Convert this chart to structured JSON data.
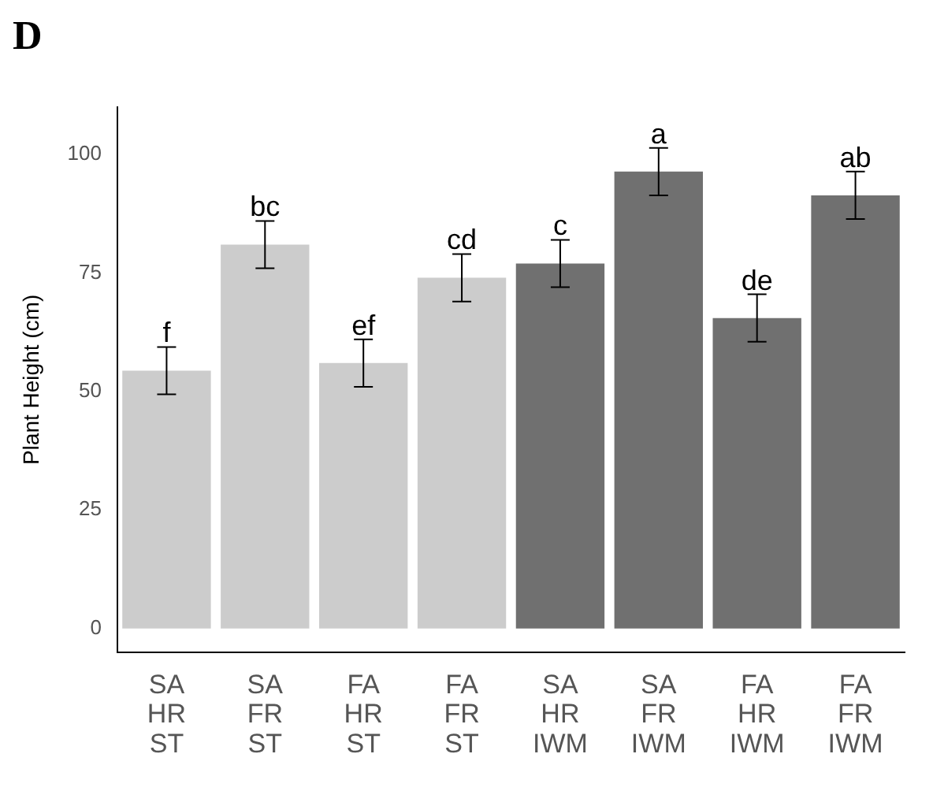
{
  "chart_data": {
    "type": "bar",
    "title": "D",
    "ylabel": "Plant Height (cm)",
    "categories": [
      "SA\nHR\nST",
      "SA\nFR\nST",
      "FA\nHR\nST",
      "FA\nFR\nST",
      "SA\nHR\nIWM",
      "SA\nFR\nIWM",
      "FA\nHR\nIWM",
      "FA\nFR\nIWM"
    ],
    "values": [
      54.4,
      81,
      56,
      74,
      77,
      96.4,
      65.5,
      91.4
    ],
    "errors": [
      5,
      5,
      5,
      5,
      5,
      5,
      5,
      5
    ],
    "colors": [
      "#cccccc",
      "#cccccc",
      "#cccccc",
      "#cccccc",
      "#707070",
      "#707070",
      "#707070",
      "#707070"
    ],
    "ylim": [
      -5,
      110
    ],
    "yticks": [
      0,
      25,
      50,
      75,
      100
    ],
    "grid": false,
    "legend": false,
    "annotations": [
      {
        "text": "f",
        "x": "SA\nHR\nST",
        "y": 59.4
      },
      {
        "text": "bc",
        "x": "SA\nFR\nST",
        "y": 86
      },
      {
        "text": "ef",
        "x": "FA\nHR\nST",
        "y": 61
      },
      {
        "text": "cd",
        "x": "FA\nFR\nST",
        "y": 79
      },
      {
        "text": "c",
        "x": "SA\nHR\nIWM",
        "y": 82
      },
      {
        "text": "a",
        "x": "SA\nFR\nIWM",
        "y": 101.4
      },
      {
        "text": "de",
        "x": "FA\nHR\nIWM",
        "y": 70.5
      },
      {
        "text": "ab",
        "x": "FA\nFR\nIWM",
        "y": 96.4
      }
    ]
  }
}
